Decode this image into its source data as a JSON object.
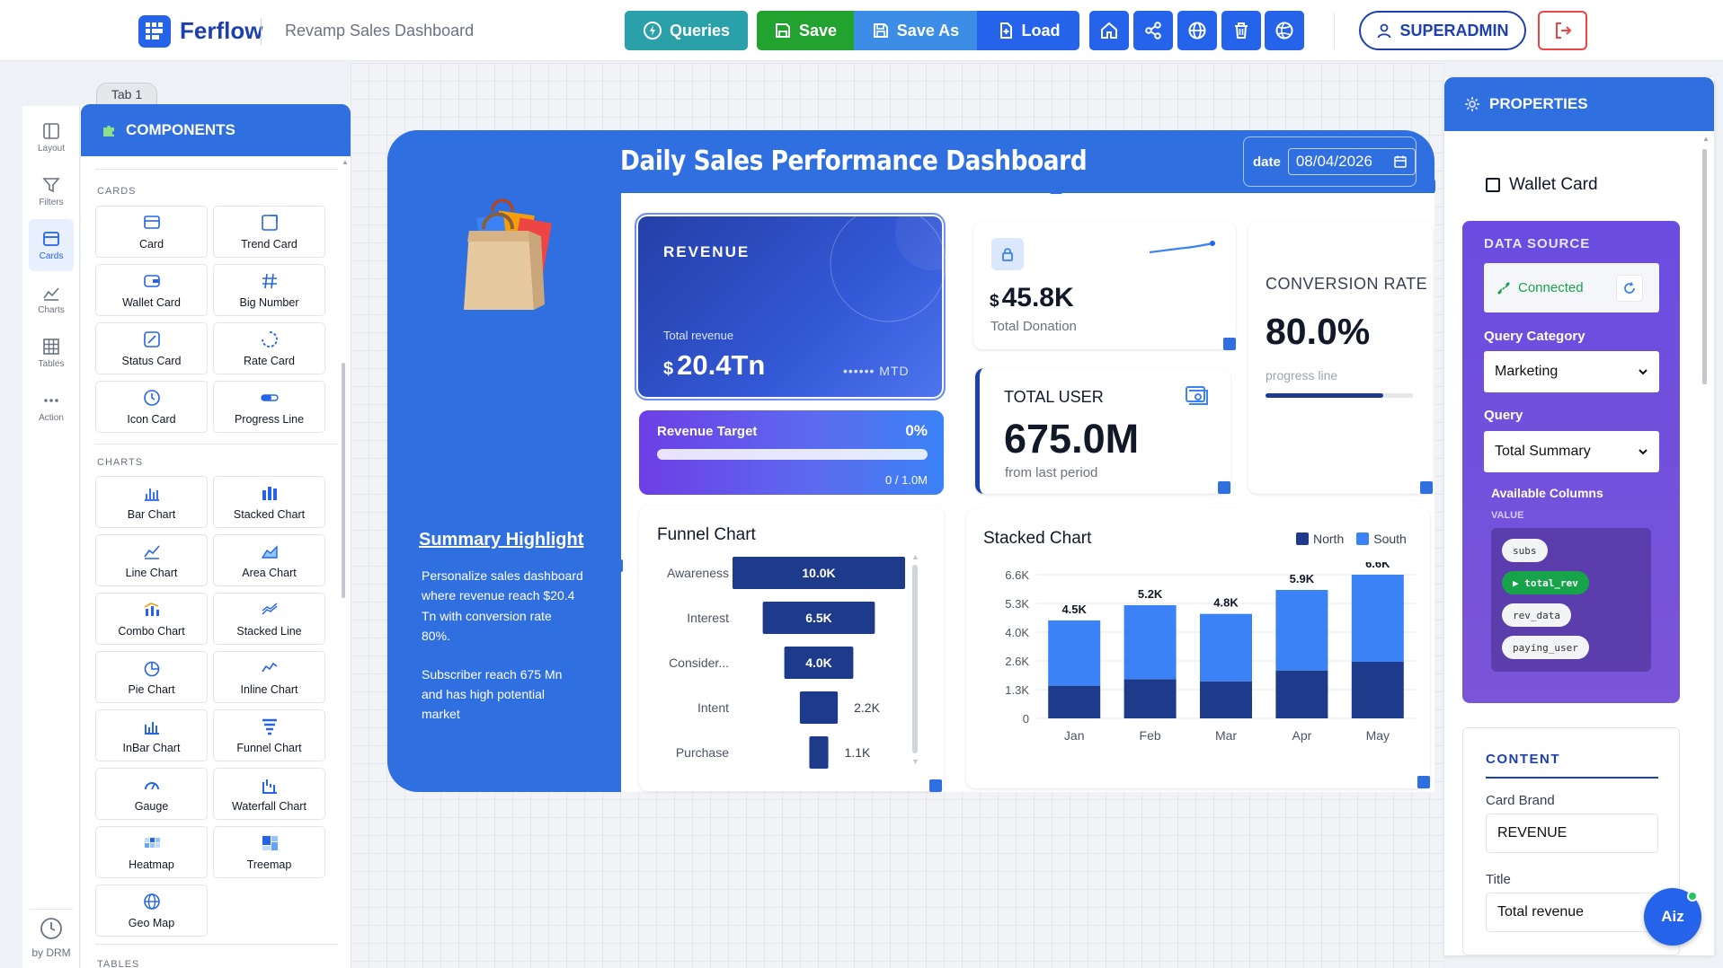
{
  "app": {
    "name": "Ferflow",
    "doc_title": "Revamp Sales Dashboard"
  },
  "toolbar": {
    "queries": "Queries",
    "save": "Save",
    "save_as": "Save As",
    "load": "Load"
  },
  "user": {
    "name": "SUPERADMIN"
  },
  "tab": {
    "label": "Tab 1"
  },
  "rail": [
    {
      "label": "Layout",
      "icon": "layout-icon"
    },
    {
      "label": "Filters",
      "icon": "filter-icon"
    },
    {
      "label": "Cards",
      "icon": "cards-icon"
    },
    {
      "label": "Charts",
      "icon": "charts-icon"
    },
    {
      "label": "Tables",
      "icon": "tables-icon"
    },
    {
      "label": "Action",
      "icon": "action-icon"
    }
  ],
  "rail_footer": "by DRM",
  "components": {
    "title": "COMPONENTS",
    "cards_label": "CARDS",
    "cards": [
      "Card",
      "Trend Card",
      "Wallet Card",
      "Big Number",
      "Status Card",
      "Rate Card",
      "Icon Card",
      "Progress Line"
    ],
    "charts_label": "CHARTS",
    "charts": [
      "Bar Chart",
      "Stacked Chart",
      "Line Chart",
      "Area Chart",
      "Combo Chart",
      "Stacked Line",
      "Pie Chart",
      "Inline Chart",
      "InBar Chart",
      "Funnel Chart",
      "Gauge",
      "Waterfall Chart",
      "Heatmap",
      "Treemap",
      "Geo Map"
    ],
    "tables_label": "TABLES"
  },
  "dashboard": {
    "title": "Daily Sales Performance Dashboard",
    "date_label": "date",
    "date_value": "08/04/2026",
    "summary_title": "Summary Highlight",
    "summary_p1": "Personalize sales dashboard where revenue reach $20.4 Tn with conversion rate 80%.",
    "summary_p2": "Subscriber reach 675 Mn and has high potential market"
  },
  "revenue_card": {
    "brand": "REVENUE",
    "title": "Total revenue",
    "currency": "$",
    "value": "20.4Tn",
    "masked": "•••••• MTD"
  },
  "revenue_target": {
    "title": "Revenue Target",
    "percent": "0%",
    "progress": 0,
    "caption": "0 / 1.0M"
  },
  "donation_card": {
    "currency": "$",
    "value": "45.8K",
    "label": "Total Donation"
  },
  "users_card": {
    "title": "TOTAL USER",
    "value": "675.0M",
    "sub": "from last period"
  },
  "conversion_card": {
    "title": "CONVERSION RATE",
    "value": "80.0%",
    "sub": "progress line",
    "progress": 0.8
  },
  "funnel_card": {
    "title": "Funnel Chart"
  },
  "stack_card": {
    "title": "Stacked Chart"
  },
  "chart_data": [
    {
      "type": "bar",
      "title": "Funnel Chart",
      "categories": [
        "Awareness",
        "Interest",
        "Consider...",
        "Intent",
        "Purchase"
      ],
      "values": [
        10000,
        6500,
        4000,
        2200,
        1100
      ],
      "value_labels": [
        "10.0K",
        "6.5K",
        "4.0K",
        "2.2K",
        "1.1K"
      ]
    },
    {
      "type": "bar",
      "title": "Stacked Chart",
      "categories": [
        "Jan",
        "Feb",
        "Mar",
        "Apr",
        "May"
      ],
      "series": [
        {
          "name": "North",
          "values": [
            1500,
            1800,
            1700,
            2200,
            2600
          ]
        },
        {
          "name": "South",
          "values": [
            3000,
            3400,
            3100,
            3700,
            4000
          ]
        }
      ],
      "totals": [
        "4.5K",
        "5.2K",
        "4.8K",
        "5.9K",
        "6.6K"
      ],
      "yticks": [
        "6.6K",
        "5.3K",
        "4.0K",
        "2.6K",
        "1.3K",
        "0"
      ],
      "ylim": [
        0,
        6600
      ],
      "legend": "top-right",
      "colors": {
        "North": "#1e3a8a",
        "South": "#3b82f6"
      }
    }
  ],
  "properties": {
    "title": "PROPERTIES",
    "component": "Wallet Card",
    "data_source_label": "DATA SOURCE",
    "connected": "Connected",
    "query_category_label": "Query Category",
    "query_category": "Marketing",
    "query_label": "Query",
    "query": "Total Summary",
    "available_columns": "Available Columns",
    "value_label": "VALUE",
    "columns": [
      "subs",
      "total_rev",
      "rev_data",
      "paying_user"
    ],
    "active_column": "total_rev",
    "content_label": "CONTENT",
    "card_brand_label": "Card Brand",
    "card_brand": "REVENUE",
    "title_label": "Title",
    "title_value": "Total revenue"
  },
  "assistant": {
    "label": "Aiz"
  }
}
